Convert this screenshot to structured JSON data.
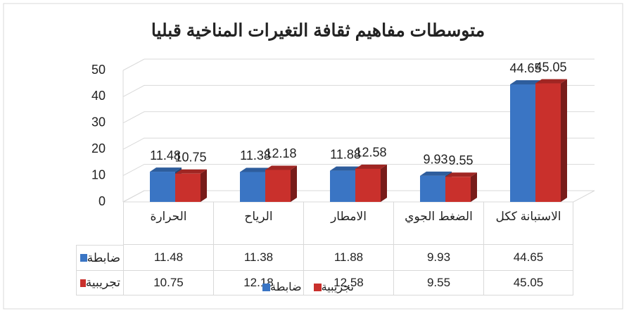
{
  "chart_data": {
    "type": "bar",
    "title": "متوسطات مفاهيم ثقافة التغيرات المناخية قبليا",
    "categories": [
      "الحرارة",
      "الرياح",
      "الامطار",
      "الضغط الجوي",
      "الاستبانة ككل"
    ],
    "series": [
      {
        "name": "ضابطة",
        "color": "#3a75c4",
        "values": [
          11.48,
          11.38,
          11.88,
          9.93,
          44.65
        ]
      },
      {
        "name": "تجريبية",
        "color": "#c9302c",
        "values": [
          10.75,
          12.18,
          12.58,
          9.55,
          45.05
        ]
      }
    ],
    "ylim": [
      0,
      50
    ],
    "yticks": [
      0,
      10,
      20,
      30,
      40,
      50
    ],
    "grid": true,
    "legend": "bottom"
  }
}
